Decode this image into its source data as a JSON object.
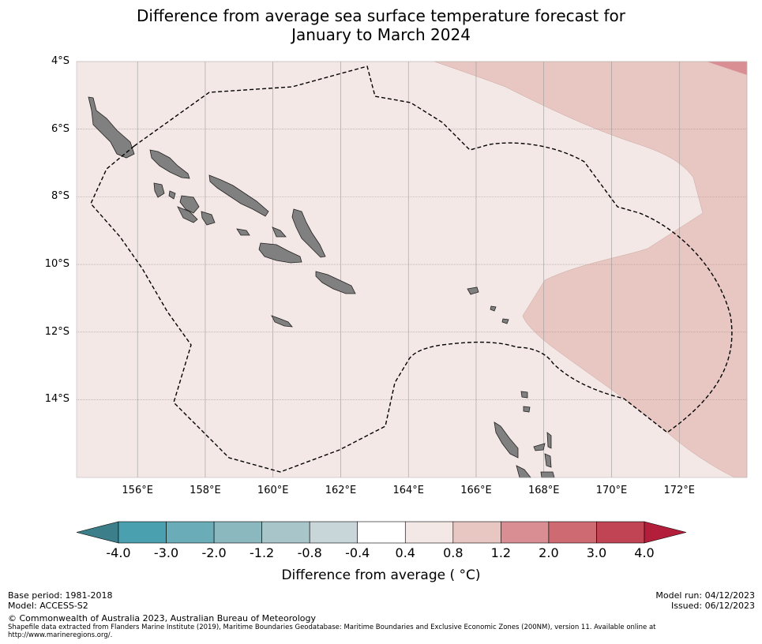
{
  "title_line1": "Difference from average sea surface temperature forecast for",
  "title_line2": "January to March 2024",
  "map": {
    "extent": {
      "lon_min": 154.2,
      "lon_max": 174.0,
      "lat_min": -16.3,
      "lat_max": -4.0
    },
    "lat_labels": [
      "4°S",
      "6°S",
      "8°S",
      "10°S",
      "12°S",
      "14°S"
    ],
    "lat_values": [
      -4,
      -6,
      -8,
      -10,
      -12,
      -14
    ],
    "lon_labels": [
      "156°E",
      "158°E",
      "160°E",
      "162°E",
      "164°E",
      "166°E",
      "168°E",
      "170°E",
      "172°E"
    ],
    "lon_values": [
      156,
      158,
      160,
      162,
      164,
      166,
      168,
      170,
      172
    ],
    "colors": {
      "anomaly_0_4_to_0_8": "#f4e8e6",
      "anomaly_0_8_to_1_2": "#e8c7c2",
      "anomaly_1_2_to_2_0": "#d88e93",
      "land": "#808080",
      "eez_boundary": "#000000"
    }
  },
  "colorbar": {
    "ticks": [
      "-4.0",
      "-3.0",
      "-2.0",
      "-1.2",
      "-0.8",
      "-0.4",
      "0.4",
      "0.8",
      "1.2",
      "2.0",
      "3.0",
      "4.0"
    ],
    "colors": [
      "#4aa0ae",
      "#6aacb8",
      "#8bb8bf",
      "#a8c5ca",
      "#c8d6da",
      "#ffffff",
      "#f4e8e6",
      "#e8c7c2",
      "#d88e93",
      "#cd6a72",
      "#c14455"
    ],
    "under_color": "#3c7e89",
    "over_color": "#b31e3a",
    "label": "Difference from average ( °C)"
  },
  "footer": {
    "base_period": "Base period: 1981-2018",
    "model": "Model: ACCESS-S2",
    "model_run": "Model run: 04/12/2023",
    "issued": "Issued: 06/12/2023",
    "copyright": "© Commonwealth of Australia 2023, Australian Bureau of Meteorology",
    "shapefile_note": "Shapefile data extracted from Flanders Marine Institute (2019), Maritime Boundaries Geodatabase: Maritime Boundaries and Exclusive Economic Zones (200NM), version 11. Available online at http://www.marineregions.org/."
  }
}
